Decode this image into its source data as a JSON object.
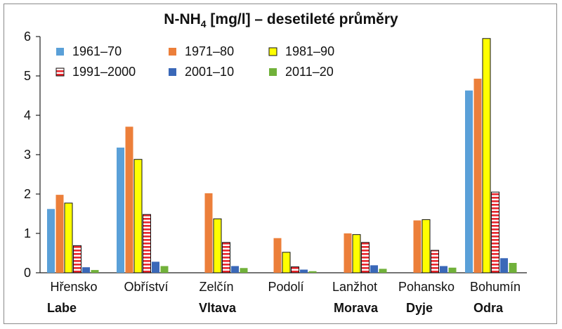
{
  "chart_data": {
    "type": "bar",
    "title_main": "N-NH",
    "title_sub": "4",
    "title_rest": " [mg/l] – desetileté průměry",
    "ylim": [
      0,
      6
    ],
    "yticks": [
      "0",
      "1",
      "2",
      "3",
      "4",
      "5",
      "6"
    ],
    "categories": [
      "Hřensko",
      "Obříství",
      "Zelčín",
      "Podolí",
      "Lanžhot",
      "Pohansko",
      "Bohumín"
    ],
    "rivers": [
      "Labe",
      "",
      "Vltava",
      "",
      "Morava",
      "Dyje",
      "Odra"
    ],
    "series": [
      {
        "name": "1961–70",
        "color": "#5aa0d8",
        "pattern": "solid",
        "values": [
          1.62,
          3.18,
          null,
          null,
          null,
          null,
          4.63
        ]
      },
      {
        "name": "1971–80",
        "color": "#ec7f3a",
        "pattern": "solid",
        "values": [
          1.98,
          3.71,
          2.02,
          0.88,
          1.0,
          1.33,
          4.93
        ]
      },
      {
        "name": "1981–90",
        "color": "#ffff00",
        "pattern": "outlined",
        "values": [
          1.77,
          2.88,
          1.37,
          0.52,
          0.97,
          1.35,
          5.95
        ]
      },
      {
        "name": "1991–2000",
        "color": "#e8262c",
        "pattern": "striped",
        "values": [
          0.69,
          1.48,
          0.77,
          0.15,
          0.77,
          0.57,
          2.05
        ]
      },
      {
        "name": "2001–10",
        "color": "#3a68b8",
        "pattern": "solid",
        "values": [
          0.14,
          0.28,
          0.17,
          0.08,
          0.19,
          0.17,
          0.37
        ]
      },
      {
        "name": "2011–20",
        "color": "#71b13a",
        "pattern": "solid",
        "values": [
          0.07,
          0.17,
          0.12,
          0.04,
          0.1,
          0.13,
          0.25
        ]
      }
    ],
    "legend_position": "top-left",
    "grid": false
  }
}
